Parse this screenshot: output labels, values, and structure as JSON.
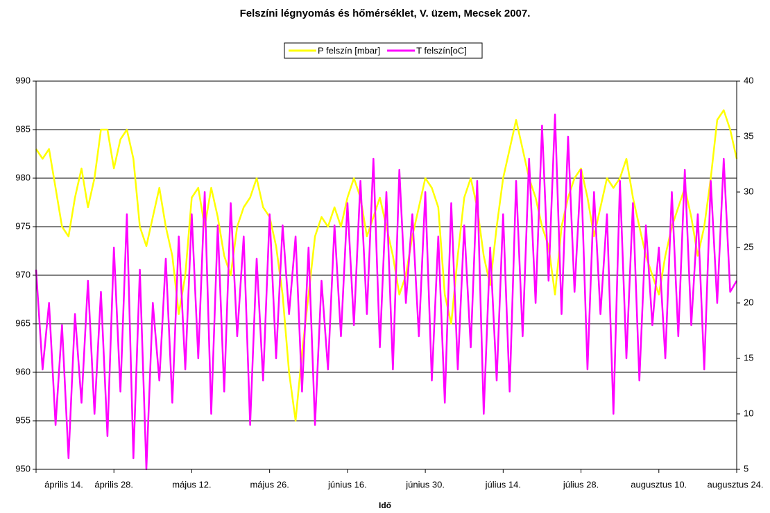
{
  "chart_data": {
    "type": "line",
    "title": "Felszíni légnyomás és hőmérséklet, V. üzem, Mecsek 2007.",
    "xlabel": "Idő",
    "categories": [
      "április 14.",
      null,
      null,
      null,
      null,
      null,
      null,
      null,
      null,
      null,
      null,
      null,
      "április 28.",
      null,
      null,
      null,
      null,
      null,
      null,
      null,
      null,
      null,
      null,
      null,
      "május 12.",
      null,
      null,
      null,
      null,
      null,
      null,
      null,
      null,
      null,
      null,
      null,
      "május 26.",
      null,
      null,
      null,
      null,
      null,
      null,
      null,
      null,
      null,
      null,
      null,
      "június 16.",
      null,
      null,
      null,
      null,
      null,
      null,
      null,
      null,
      null,
      null,
      null,
      "június 30.",
      null,
      null,
      null,
      null,
      null,
      null,
      null,
      null,
      null,
      null,
      null,
      "július 14.",
      null,
      null,
      null,
      null,
      null,
      null,
      null,
      null,
      null,
      null,
      null,
      "július 28.",
      null,
      null,
      null,
      null,
      null,
      null,
      null,
      null,
      null,
      null,
      null,
      "augusztus 10.",
      null,
      null,
      null,
      null,
      null,
      null,
      null,
      null,
      null,
      null,
      null,
      "augusztus 24."
    ],
    "series": [
      {
        "name": "P felszín [mbar]",
        "color": "#ffff00",
        "values": [
          983,
          982,
          983,
          979,
          975,
          974,
          978,
          981,
          977,
          980,
          985,
          985,
          981,
          984,
          985,
          982,
          975,
          973,
          976,
          979,
          975,
          972,
          966,
          970,
          978,
          979,
          975,
          979,
          976,
          972,
          970,
          975,
          977,
          978,
          980,
          977,
          976,
          973,
          968,
          960,
          955,
          962,
          968,
          974,
          976,
          975,
          977,
          975,
          978,
          980,
          978,
          974,
          976,
          978,
          975,
          972,
          968,
          970,
          974,
          977,
          980,
          979,
          977,
          968,
          965,
          972,
          978,
          980,
          977,
          972,
          969,
          975,
          980,
          983,
          986,
          983,
          980,
          978,
          975,
          973,
          968,
          975,
          978,
          980,
          981,
          978,
          974,
          977,
          980,
          979,
          980,
          982,
          978,
          975,
          972,
          970,
          968,
          972,
          975,
          977,
          979,
          976,
          972,
          975,
          980,
          986,
          987,
          985,
          982
        ]
      },
      {
        "name": "T felszín[oC]",
        "color": "#ff00ff",
        "axis": "y2",
        "values": [
          23,
          14,
          20,
          9,
          18,
          6,
          19,
          11,
          22,
          10,
          21,
          8,
          25,
          12,
          28,
          6,
          23,
          5,
          20,
          13,
          24,
          11,
          26,
          14,
          28,
          15,
          30,
          10,
          27,
          12,
          29,
          17,
          26,
          9,
          24,
          13,
          28,
          15,
          27,
          19,
          26,
          12,
          25,
          9,
          22,
          14,
          27,
          17,
          29,
          18,
          31,
          19,
          33,
          16,
          30,
          14,
          32,
          20,
          28,
          17,
          30,
          13,
          26,
          11,
          29,
          14,
          27,
          16,
          31,
          10,
          25,
          13,
          28,
          12,
          31,
          17,
          33,
          20,
          36,
          22,
          37,
          19,
          35,
          21,
          32,
          14,
          30,
          19,
          28,
          10,
          31,
          15,
          29,
          13,
          27,
          18,
          25,
          15,
          30,
          17,
          32,
          18,
          28,
          14,
          31,
          20,
          33,
          21,
          22
        ]
      }
    ],
    "ylim": [
      950,
      990
    ],
    "yticks": [
      950,
      955,
      960,
      965,
      970,
      975,
      980,
      985,
      990
    ],
    "y2lim": [
      5,
      40
    ],
    "y2ticks": [
      5,
      10,
      15,
      20,
      25,
      30,
      35,
      40
    ],
    "grid": true,
    "legend": "top"
  }
}
